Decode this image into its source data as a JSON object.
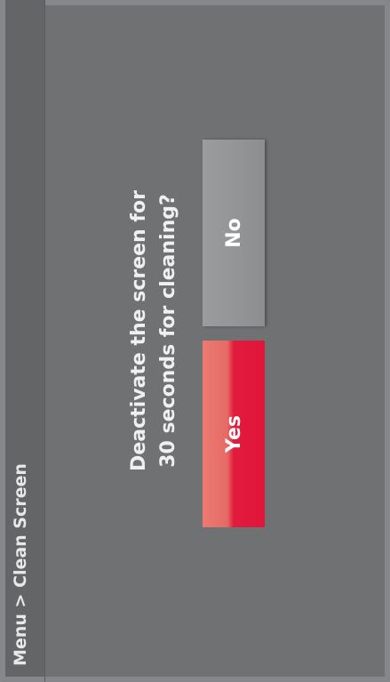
{
  "header": {
    "breadcrumb": "Menu > Clean Screen"
  },
  "dialog": {
    "question_lines": [
      "Deactivate the screen for",
      "30 seconds for cleaning?"
    ],
    "buttons": [
      {
        "label": "Yes"
      },
      {
        "label": "No"
      }
    ]
  }
}
